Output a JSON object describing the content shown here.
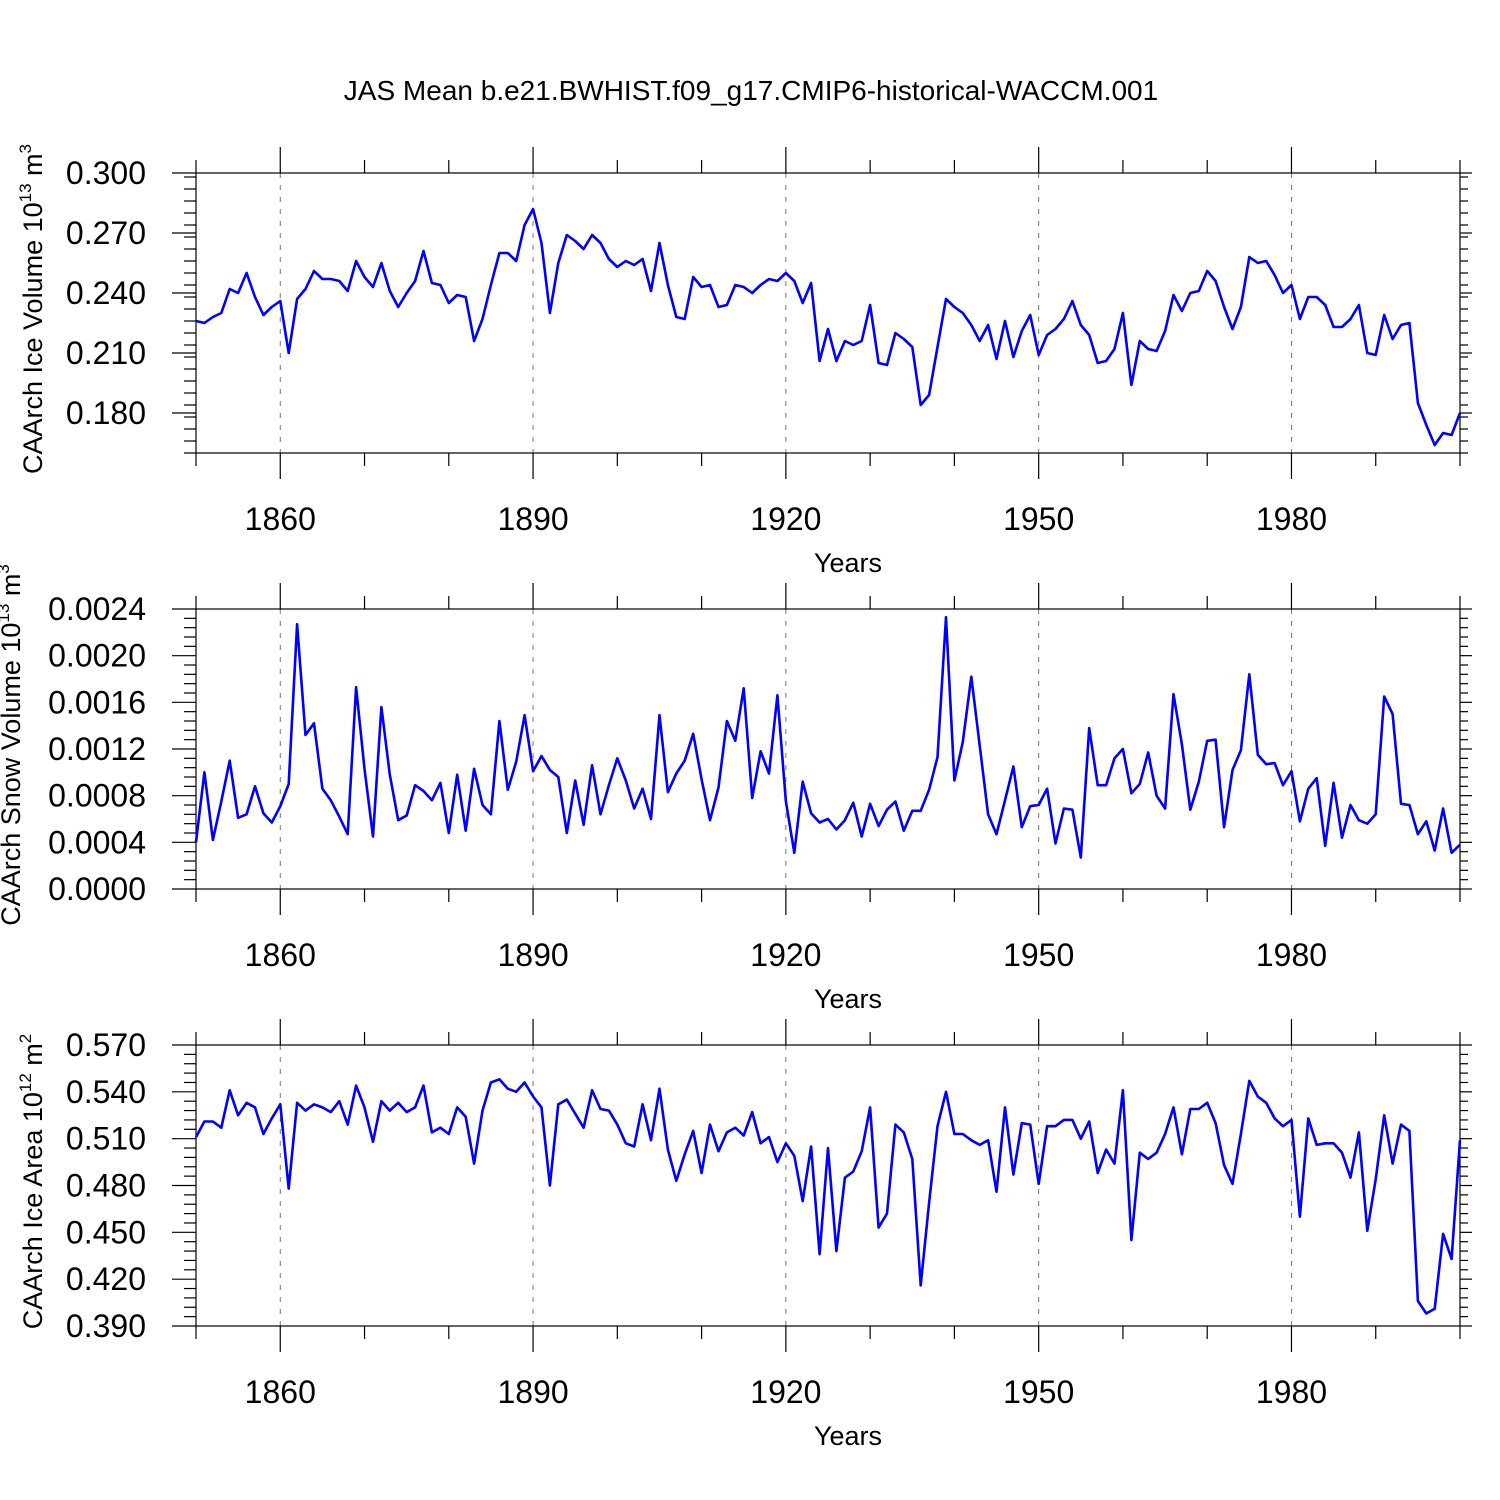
{
  "chart_data": [
    {
      "type": "line",
      "title": "JAS Mean b.e21.BWHIST.f09_g17.CMIP6-historical-WACCM.001",
      "ylabel": "CAArch Ice Volume 10",
      "ylabel_exponent": "13",
      "ylabel_unit": " m",
      "ylabel_unit_exponent": "3",
      "xlabel": "Years",
      "x_start": 1850,
      "xlim": [
        1850,
        2000
      ],
      "ylim": [
        0.16,
        0.3
      ],
      "yticks": [
        0.18,
        0.21,
        0.24,
        0.27,
        0.3
      ],
      "ytick_labels": [
        "0.180",
        "0.210",
        "0.240",
        "0.270",
        "0.300"
      ],
      "xticks": [
        1860,
        1890,
        1920,
        1950,
        1980
      ],
      "xtick_labels": [
        "1860",
        "1890",
        "1920",
        "1950",
        "1980"
      ],
      "series": [
        {
          "name": "CAArch Ice Volume",
          "color": "#0000ff",
          "values": [
            0.226,
            0.225,
            0.228,
            0.23,
            0.242,
            0.24,
            0.25,
            0.238,
            0.229,
            0.233,
            0.236,
            0.21,
            0.237,
            0.242,
            0.251,
            0.247,
            0.247,
            0.246,
            0.241,
            0.256,
            0.248,
            0.243,
            0.255,
            0.241,
            0.233,
            0.24,
            0.246,
            0.261,
            0.245,
            0.244,
            0.235,
            0.239,
            0.238,
            0.216,
            0.227,
            0.244,
            0.26,
            0.26,
            0.256,
            0.274,
            0.282,
            0.265,
            0.23,
            0.255,
            0.269,
            0.266,
            0.262,
            0.269,
            0.265,
            0.257,
            0.253,
            0.256,
            0.254,
            0.257,
            0.241,
            0.265,
            0.244,
            0.228,
            0.227,
            0.248,
            0.243,
            0.244,
            0.233,
            0.234,
            0.244,
            0.243,
            0.24,
            0.244,
            0.247,
            0.246,
            0.25,
            0.246,
            0.235,
            0.245,
            0.206,
            0.222,
            0.206,
            0.216,
            0.214,
            0.216,
            0.234,
            0.205,
            0.204,
            0.22,
            0.217,
            0.213,
            0.184,
            0.189,
            0.213,
            0.237,
            0.233,
            0.23,
            0.224,
            0.216,
            0.224,
            0.207,
            0.226,
            0.208,
            0.221,
            0.229,
            0.209,
            0.219,
            0.222,
            0.227,
            0.236,
            0.224,
            0.219,
            0.205,
            0.206,
            0.212,
            0.23,
            0.194,
            0.216,
            0.212,
            0.211,
            0.221,
            0.239,
            0.231,
            0.24,
            0.241,
            0.251,
            0.246,
            0.233,
            0.222,
            0.233,
            0.258,
            0.255,
            0.256,
            0.249,
            0.24,
            0.244,
            0.227,
            0.238,
            0.238,
            0.234,
            0.223,
            0.223,
            0.227,
            0.234,
            0.21,
            0.209,
            0.229,
            0.217,
            0.224,
            0.225,
            0.185,
            0.174,
            0.164,
            0.17,
            0.169,
            0.18
          ]
        }
      ]
    },
    {
      "type": "line",
      "ylabel": "CAArch Snow Volume 10",
      "ylabel_exponent": "13",
      "ylabel_unit": " m",
      "ylabel_unit_exponent": "3",
      "xlabel": "Years",
      "x_start": 1850,
      "xlim": [
        1850,
        2000
      ],
      "ylim": [
        0.0,
        0.0024
      ],
      "yticks": [
        0.0,
        0.0004,
        0.0008,
        0.0012,
        0.0016,
        0.002,
        0.0024
      ],
      "ytick_labels": [
        "0.0000",
        "0.0004",
        "0.0008",
        "0.0012",
        "0.0016",
        "0.0020",
        "0.0024"
      ],
      "xticks": [
        1860,
        1890,
        1920,
        1950,
        1980
      ],
      "xtick_labels": [
        "1860",
        "1890",
        "1920",
        "1950",
        "1980"
      ],
      "series": [
        {
          "name": "CAArch Snow Volume",
          "color": "#0000ff",
          "values": [
            0.0004,
            0.001,
            0.00042,
            0.00075,
            0.0011,
            0.00061,
            0.00064,
            0.00088,
            0.00065,
            0.00057,
            0.00071,
            0.0009,
            0.00227,
            0.00132,
            0.00142,
            0.00086,
            0.00076,
            0.00062,
            0.00047,
            0.00173,
            0.00103,
            0.00045,
            0.00156,
            0.00098,
            0.00059,
            0.00063,
            0.00089,
            0.00084,
            0.00076,
            0.00091,
            0.00048,
            0.00098,
            0.0005,
            0.00103,
            0.00072,
            0.00064,
            0.00144,
            0.00085,
            0.00109,
            0.00149,
            0.00101,
            0.00114,
            0.00102,
            0.00096,
            0.00048,
            0.00093,
            0.00055,
            0.00106,
            0.00064,
            0.00089,
            0.00112,
            0.00093,
            0.00069,
            0.00086,
            0.0006,
            0.00149,
            0.00083,
            0.00099,
            0.0011,
            0.00133,
            0.00094,
            0.00059,
            0.00087,
            0.00144,
            0.00127,
            0.00172,
            0.00078,
            0.00118,
            0.00099,
            0.00166,
            0.00075,
            0.00031,
            0.00092,
            0.00065,
            0.00057,
            0.0006,
            0.00051,
            0.00059,
            0.00074,
            0.00045,
            0.00073,
            0.00054,
            0.00068,
            0.00075,
            0.0005,
            0.00067,
            0.00067,
            0.00085,
            0.00113,
            0.00233,
            0.00093,
            0.00126,
            0.00182,
            0.00123,
            0.00064,
            0.00047,
            0.00076,
            0.00105,
            0.00053,
            0.00071,
            0.00072,
            0.00086,
            0.00039,
            0.00069,
            0.00068,
            0.00027,
            0.00138,
            0.00089,
            0.00089,
            0.00112,
            0.0012,
            0.00082,
            0.0009,
            0.00117,
            0.0008,
            0.00069,
            0.00167,
            0.00124,
            0.00068,
            0.00092,
            0.00127,
            0.00128,
            0.00053,
            0.00102,
            0.00119,
            0.00184,
            0.00115,
            0.00107,
            0.00108,
            0.00089,
            0.00101,
            0.00058,
            0.00086,
            0.00095,
            0.00037,
            0.00091,
            0.00044,
            0.00072,
            0.00059,
            0.00056,
            0.00064,
            0.00165,
            0.0015,
            0.00073,
            0.00072,
            0.00047,
            0.00058,
            0.00033,
            0.00069,
            0.00031,
            0.00038
          ]
        }
      ]
    },
    {
      "type": "line",
      "ylabel": "CAArch Ice Area 10",
      "ylabel_exponent": "12",
      "ylabel_unit": " m",
      "ylabel_unit_exponent": "2",
      "xlabel": "Years",
      "x_start": 1850,
      "xlim": [
        1850,
        2000
      ],
      "ylim": [
        0.39,
        0.57
      ],
      "yticks": [
        0.39,
        0.42,
        0.45,
        0.48,
        0.51,
        0.54,
        0.57
      ],
      "ytick_labels": [
        "0.390",
        "0.420",
        "0.450",
        "0.480",
        "0.510",
        "0.540",
        "0.570"
      ],
      "xticks": [
        1860,
        1890,
        1920,
        1950,
        1980
      ],
      "xtick_labels": [
        "1860",
        "1890",
        "1920",
        "1950",
        "1980"
      ],
      "series": [
        {
          "name": "CAArch Ice Area",
          "color": "#0000ff",
          "values": [
            0.511,
            0.521,
            0.521,
            0.517,
            0.541,
            0.525,
            0.533,
            0.53,
            0.513,
            0.523,
            0.532,
            0.478,
            0.533,
            0.528,
            0.532,
            0.53,
            0.527,
            0.534,
            0.519,
            0.544,
            0.53,
            0.508,
            0.534,
            0.528,
            0.533,
            0.527,
            0.53,
            0.544,
            0.514,
            0.517,
            0.513,
            0.53,
            0.524,
            0.494,
            0.528,
            0.546,
            0.548,
            0.542,
            0.54,
            0.546,
            0.537,
            0.53,
            0.48,
            0.532,
            0.535,
            0.526,
            0.517,
            0.541,
            0.529,
            0.528,
            0.519,
            0.507,
            0.505,
            0.532,
            0.509,
            0.542,
            0.503,
            0.483,
            0.5,
            0.515,
            0.488,
            0.519,
            0.502,
            0.514,
            0.517,
            0.512,
            0.527,
            0.507,
            0.511,
            0.495,
            0.507,
            0.499,
            0.47,
            0.505,
            0.436,
            0.504,
            0.438,
            0.485,
            0.489,
            0.502,
            0.53,
            0.453,
            0.462,
            0.519,
            0.514,
            0.497,
            0.416,
            0.469,
            0.518,
            0.54,
            0.513,
            0.513,
            0.509,
            0.506,
            0.509,
            0.476,
            0.53,
            0.487,
            0.52,
            0.519,
            0.481,
            0.518,
            0.518,
            0.522,
            0.522,
            0.51,
            0.521,
            0.488,
            0.503,
            0.494,
            0.541,
            0.445,
            0.501,
            0.497,
            0.501,
            0.513,
            0.53,
            0.5,
            0.529,
            0.529,
            0.533,
            0.52,
            0.493,
            0.481,
            0.513,
            0.547,
            0.537,
            0.533,
            0.523,
            0.518,
            0.522,
            0.46,
            0.523,
            0.506,
            0.507,
            0.507,
            0.501,
            0.485,
            0.514,
            0.451,
            0.484,
            0.525,
            0.494,
            0.519,
            0.515,
            0.406,
            0.398,
            0.401,
            0.449,
            0.433,
            0.509
          ]
        }
      ]
    }
  ]
}
